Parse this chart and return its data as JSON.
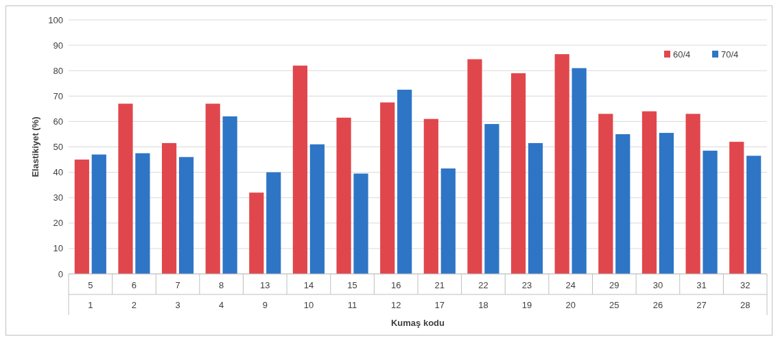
{
  "chart_data": {
    "type": "bar",
    "xlabel": "Kumaş kodu",
    "ylabel": "Elastikiyet (%)",
    "categories": [
      "5\n1",
      "6\n2",
      "7\n3",
      "8\n4",
      "13\n9",
      "14\n10",
      "15\n11",
      "16\n12",
      "21\n17",
      "22\n18",
      "23\n19",
      "24\n20",
      "29\n25",
      "30\n26",
      "31\n27",
      "32\n28"
    ],
    "series": [
      {
        "name": "60/4",
        "color": "#e0474c",
        "values": [
          45,
          67,
          51.5,
          67,
          32,
          82,
          61.5,
          67.5,
          61,
          84.5,
          79,
          86.5,
          63,
          64,
          63,
          52
        ]
      },
      {
        "name": "70/4",
        "color": "#2e75c6",
        "values": [
          47,
          47.5,
          46,
          62,
          40,
          51,
          39.5,
          72.5,
          41.5,
          59,
          51.5,
          81,
          55,
          55.5,
          48.5,
          46.5
        ]
      }
    ],
    "ylim": [
      0,
      100
    ],
    "yticks": [
      0,
      10,
      20,
      30,
      40,
      50,
      60,
      70,
      80,
      90,
      100
    ],
    "grid": "y",
    "legend": "top right"
  }
}
